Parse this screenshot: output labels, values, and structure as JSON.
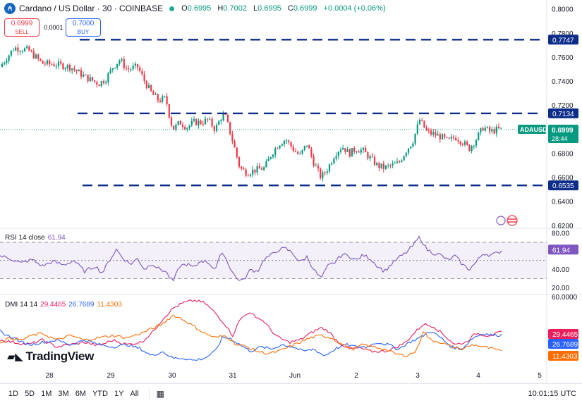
{
  "header": {
    "symbol_icon": "cardano-icon",
    "title": "Cardano / US Dollar · 30 · COINBASE",
    "ohlc": {
      "o": "0.6995",
      "h": "0.7002",
      "l": "0.6995",
      "c": "0.6999",
      "chg": "+0.0004 (+0.06%)"
    }
  },
  "trade": {
    "sell_price": "0.6999",
    "sell_label": "SELL",
    "spread": "0.0001",
    "buy_price": "0.7000",
    "buy_label": "BUY"
  },
  "indicators": {
    "rsi": {
      "label": "RSI 14 close",
      "value": "61.94"
    },
    "dmi": {
      "label": "DMI 14 14",
      "plus": "29.4465",
      "minus": "26.7689",
      "adx": "11.4303"
    }
  },
  "footer": {
    "ranges": [
      "1D",
      "5D",
      "1M",
      "3M",
      "6M",
      "YTD",
      "1Y",
      "All"
    ],
    "time": "10:01:15 UTC"
  },
  "logo": "TradingView",
  "colors": {
    "up": "#089981",
    "down": "#f23645",
    "level": "#0d2d8a",
    "rsi": "#7e57c2",
    "dmi_plus": "#ec1f5a",
    "dmi_minus": "#2962ff",
    "adx": "#ff6d00"
  },
  "chart_data": [
    {
      "type": "candlestick",
      "symbol": "ADAUSD",
      "y_ticks": [
        0.62,
        0.64,
        0.66,
        0.68,
        0.7,
        0.72,
        0.74,
        0.76,
        0.78,
        0.8
      ],
      "y_tick_labels": [
        "0.6200",
        "0.6400",
        "0.6600",
        "0.6800",
        "",
        "0.7200",
        "0.7400",
        "0.7600",
        "0.7800",
        "0.8000"
      ],
      "ylim": [
        0.619,
        0.803
      ],
      "x_tick_labels": [
        "28",
        "29",
        "30",
        "31",
        "Jun",
        "2",
        "3",
        "4",
        "5"
      ],
      "current_price": {
        "label": "ADAUSD",
        "value": "0.6999",
        "countdown": "28:44",
        "y": 0.6999
      },
      "levels": [
        {
          "value": 0.7747,
          "label": "0.7747"
        },
        {
          "value": 0.7134,
          "label": "0.7134"
        },
        {
          "value": 0.6535,
          "label": "0.6535"
        }
      ],
      "close_path": [
        [
          0,
          0.752
        ],
        [
          20,
          0.768
        ],
        [
          40,
          0.766
        ],
        [
          60,
          0.755
        ],
        [
          80,
          0.754
        ],
        [
          100,
          0.752
        ],
        [
          120,
          0.744
        ],
        [
          140,
          0.738
        ],
        [
          150,
          0.742
        ],
        [
          160,
          0.752
        ],
        [
          170,
          0.758
        ],
        [
          180,
          0.75
        ],
        [
          195,
          0.752
        ],
        [
          205,
          0.74
        ],
        [
          215,
          0.73
        ],
        [
          225,
          0.724
        ],
        [
          235,
          0.726
        ],
        [
          240,
          0.712
        ],
        [
          245,
          0.7
        ],
        [
          255,
          0.706
        ],
        [
          265,
          0.702
        ],
        [
          275,
          0.706
        ],
        [
          285,
          0.706
        ],
        [
          295,
          0.708
        ],
        [
          305,
          0.7
        ],
        [
          315,
          0.712
        ],
        [
          320,
          0.71
        ],
        [
          330,
          0.69
        ],
        [
          340,
          0.668
        ],
        [
          350,
          0.664
        ],
        [
          360,
          0.666
        ],
        [
          375,
          0.668
        ],
        [
          385,
          0.68
        ],
        [
          395,
          0.688
        ],
        [
          405,
          0.692
        ],
        [
          415,
          0.684
        ],
        [
          425,
          0.678
        ],
        [
          435,
          0.688
        ],
        [
          445,
          0.672
        ],
        [
          455,
          0.66
        ],
        [
          465,
          0.668
        ],
        [
          475,
          0.68
        ],
        [
          485,
          0.686
        ],
        [
          495,
          0.68
        ],
        [
          505,
          0.684
        ],
        [
          515,
          0.682
        ],
        [
          525,
          0.676
        ],
        [
          535,
          0.67
        ],
        [
          545,
          0.668
        ],
        [
          555,
          0.67
        ],
        [
          565,
          0.672
        ],
        [
          575,
          0.682
        ],
        [
          585,
          0.69
        ],
        [
          595,
          0.708
        ],
        [
          605,
          0.698
        ],
        [
          615,
          0.696
        ],
        [
          625,
          0.694
        ],
        [
          635,
          0.69
        ],
        [
          645,
          0.694
        ],
        [
          655,
          0.69
        ],
        [
          665,
          0.684
        ],
        [
          675,
          0.692
        ],
        [
          685,
          0.702
        ],
        [
          695,
          0.698
        ],
        [
          705,
          0.7
        ],
        [
          713,
          0.6999
        ]
      ]
    },
    {
      "type": "line",
      "name": "RSI 14 close",
      "ylim": [
        15,
        83
      ],
      "y_ticks": [
        20,
        40,
        60,
        80
      ],
      "y_tick_labels": [
        "20.00",
        "40.00",
        "",
        "80.00"
      ],
      "bands": [
        30,
        50,
        70
      ],
      "last": 61.94,
      "values": [
        [
          0,
          55
        ],
        [
          15,
          52
        ],
        [
          30,
          47
        ],
        [
          45,
          51
        ],
        [
          60,
          44
        ],
        [
          75,
          49
        ],
        [
          90,
          45
        ],
        [
          105,
          50
        ],
        [
          120,
          38
        ],
        [
          135,
          44
        ],
        [
          145,
          36
        ],
        [
          155,
          50
        ],
        [
          165,
          62
        ],
        [
          175,
          52
        ],
        [
          185,
          46
        ],
        [
          195,
          52
        ],
        [
          205,
          40
        ],
        [
          215,
          47
        ],
        [
          225,
          41
        ],
        [
          235,
          38
        ],
        [
          245,
          26
        ],
        [
          255,
          44
        ],
        [
          265,
          46
        ],
        [
          275,
          42
        ],
        [
          285,
          50
        ],
        [
          295,
          48
        ],
        [
          305,
          40
        ],
        [
          315,
          60
        ],
        [
          325,
          44
        ],
        [
          335,
          30
        ],
        [
          345,
          28
        ],
        [
          355,
          40
        ],
        [
          365,
          38
        ],
        [
          375,
          52
        ],
        [
          385,
          56
        ],
        [
          395,
          62
        ],
        [
          405,
          63
        ],
        [
          415,
          58
        ],
        [
          425,
          48
        ],
        [
          435,
          54
        ],
        [
          445,
          40
        ],
        [
          455,
          30
        ],
        [
          465,
          44
        ],
        [
          475,
          48
        ],
        [
          485,
          57
        ],
        [
          495,
          55
        ],
        [
          505,
          50
        ],
        [
          515,
          56
        ],
        [
          525,
          52
        ],
        [
          535,
          44
        ],
        [
          545,
          38
        ],
        [
          555,
          46
        ],
        [
          565,
          53
        ],
        [
          575,
          58
        ],
        [
          585,
          66
        ],
        [
          595,
          76
        ],
        [
          605,
          62
        ],
        [
          615,
          58
        ],
        [
          625,
          56
        ],
        [
          635,
          50
        ],
        [
          645,
          55
        ],
        [
          655,
          46
        ],
        [
          665,
          40
        ],
        [
          675,
          48
        ],
        [
          685,
          58
        ],
        [
          695,
          56
        ],
        [
          705,
          58
        ],
        [
          713,
          61.94
        ]
      ]
    },
    {
      "type": "line",
      "name": "DMI 14 14",
      "ylim": [
        0,
        61
      ],
      "y_ticks": [
        20,
        40,
        60
      ],
      "y_tick_labels": [
        "",
        "",
        "60.0000"
      ],
      "series": [
        {
          "name": "+DI",
          "last": 29.4465,
          "values": [
            [
              0,
              22
            ],
            [
              20,
              20
            ],
            [
              40,
              18
            ],
            [
              60,
              22
            ],
            [
              80,
              16
            ],
            [
              100,
              18
            ],
            [
              120,
              20
            ],
            [
              140,
              17
            ],
            [
              160,
              22
            ],
            [
              180,
              18
            ],
            [
              200,
              20
            ],
            [
              215,
              28
            ],
            [
              230,
              40
            ],
            [
              245,
              50
            ],
            [
              260,
              55
            ],
            [
              275,
              57
            ],
            [
              290,
              55
            ],
            [
              305,
              46
            ],
            [
              320,
              35
            ],
            [
              330,
              26
            ],
            [
              340,
              40
            ],
            [
              350,
              46
            ],
            [
              360,
              44
            ],
            [
              375,
              38
            ],
            [
              385,
              30
            ],
            [
              395,
              24
            ],
            [
              410,
              20
            ],
            [
              425,
              22
            ],
            [
              440,
              28
            ],
            [
              455,
              33
            ],
            [
              465,
              30
            ],
            [
              480,
              20
            ],
            [
              495,
              14
            ],
            [
              510,
              15
            ],
            [
              525,
              12
            ],
            [
              545,
              12
            ],
            [
              560,
              15
            ],
            [
              575,
              20
            ],
            [
              590,
              30
            ],
            [
              600,
              36
            ],
            [
              615,
              34
            ],
            [
              630,
              26
            ],
            [
              645,
              18
            ],
            [
              660,
              20
            ],
            [
              675,
              28
            ],
            [
              690,
              26
            ],
            [
              700,
              27
            ],
            [
              713,
              29.4465
            ]
          ]
        },
        {
          "name": "-DI",
          "last": 26.7689,
          "values": [
            [
              0,
              30
            ],
            [
              10,
              26
            ],
            [
              20,
              24
            ],
            [
              30,
              20
            ],
            [
              45,
              18
            ],
            [
              60,
              20
            ],
            [
              80,
              22
            ],
            [
              100,
              18
            ],
            [
              120,
              22
            ],
            [
              140,
              18
            ],
            [
              160,
              16
            ],
            [
              180,
              18
            ],
            [
              200,
              14
            ],
            [
              215,
              8
            ],
            [
              230,
              12
            ],
            [
              245,
              6
            ],
            [
              260,
              6
            ],
            [
              275,
              4
            ],
            [
              290,
              6
            ],
            [
              305,
              12
            ],
            [
              315,
              24
            ],
            [
              325,
              24
            ],
            [
              340,
              18
            ],
            [
              355,
              12
            ],
            [
              370,
              16
            ],
            [
              385,
              14
            ],
            [
              400,
              18
            ],
            [
              415,
              16
            ],
            [
              430,
              12
            ],
            [
              445,
              14
            ],
            [
              460,
              8
            ],
            [
              475,
              14
            ],
            [
              490,
              18
            ],
            [
              505,
              16
            ],
            [
              520,
              16
            ],
            [
              535,
              20
            ],
            [
              550,
              18
            ],
            [
              565,
              14
            ],
            [
              580,
              20
            ],
            [
              595,
              24
            ],
            [
              610,
              30
            ],
            [
              625,
              24
            ],
            [
              640,
              16
            ],
            [
              655,
              14
            ],
            [
              670,
              24
            ],
            [
              685,
              28
            ],
            [
              700,
              26
            ],
            [
              713,
              26.7689
            ]
          ]
        },
        {
          "name": "ADX",
          "last": 11.4303,
          "values": [
            [
              0,
              20
            ],
            [
              15,
              24
            ],
            [
              30,
              22
            ],
            [
              45,
              26
            ],
            [
              60,
              28
            ],
            [
              80,
              22
            ],
            [
              100,
              26
            ],
            [
              120,
              22
            ],
            [
              140,
              24
            ],
            [
              160,
              26
            ],
            [
              180,
              24
            ],
            [
              200,
              28
            ],
            [
              215,
              32
            ],
            [
              230,
              36
            ],
            [
              245,
              44
            ],
            [
              260,
              40
            ],
            [
              275,
              34
            ],
            [
              290,
              28
            ],
            [
              305,
              24
            ],
            [
              320,
              26
            ],
            [
              335,
              18
            ],
            [
              350,
              16
            ],
            [
              365,
              12
            ],
            [
              380,
              10
            ],
            [
              395,
              12
            ],
            [
              410,
              16
            ],
            [
              425,
              20
            ],
            [
              440,
              24
            ],
            [
              455,
              26
            ],
            [
              470,
              24
            ],
            [
              485,
              18
            ],
            [
              500,
              14
            ],
            [
              515,
              18
            ],
            [
              530,
              16
            ],
            [
              545,
              14
            ],
            [
              560,
              10
            ],
            [
              575,
              8
            ],
            [
              590,
              12
            ],
            [
              600,
              30
            ],
            [
              610,
              22
            ],
            [
              625,
              20
            ],
            [
              640,
              16
            ],
            [
              655,
              14
            ],
            [
              670,
              18
            ],
            [
              685,
              16
            ],
            [
              700,
              14
            ],
            [
              713,
              11.4303
            ]
          ]
        }
      ]
    }
  ]
}
